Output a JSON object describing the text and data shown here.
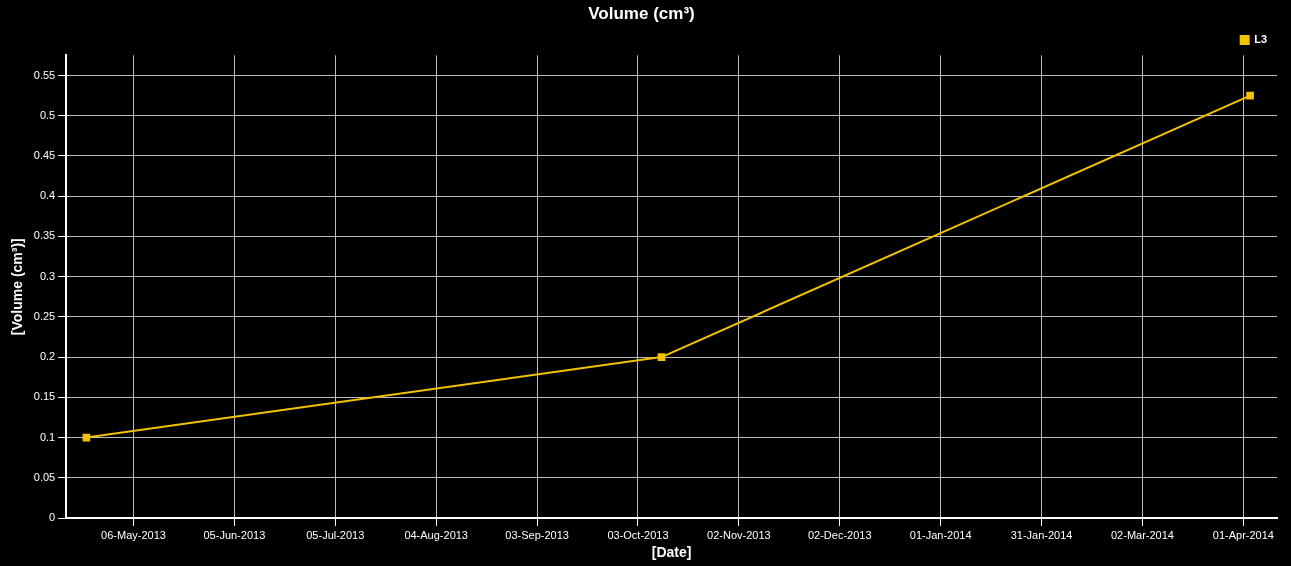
{
  "chart_data": {
    "type": "line",
    "title": "Volume (cm³)",
    "xlabel": "[Date]",
    "ylabel": "[Volume (cm³)]",
    "x": [
      "2013-04-22",
      "2013-10-10",
      "2014-04-03"
    ],
    "series": [
      {
        "name": "L3",
        "color": "#f2c200",
        "values": [
          0.1,
          0.2,
          0.525
        ]
      }
    ],
    "xlim": [
      "2013-04-16",
      "2014-04-11"
    ],
    "xticks": [
      {
        "value": "2013-05-06",
        "label": "06-May-2013"
      },
      {
        "value": "2013-06-05",
        "label": "05-Jun-2013"
      },
      {
        "value": "2013-07-05",
        "label": "05-Jul-2013"
      },
      {
        "value": "2013-08-04",
        "label": "04-Aug-2013"
      },
      {
        "value": "2013-09-03",
        "label": "03-Sep-2013"
      },
      {
        "value": "2013-10-03",
        "label": "03-Oct-2013"
      },
      {
        "value": "2013-11-02",
        "label": "02-Nov-2013"
      },
      {
        "value": "2013-12-02",
        "label": "02-Dec-2013"
      },
      {
        "value": "2014-01-01",
        "label": "01-Jan-2014"
      },
      {
        "value": "2014-01-31",
        "label": "31-Jan-2014"
      },
      {
        "value": "2014-03-02",
        "label": "02-Mar-2014"
      },
      {
        "value": "2014-04-01",
        "label": "01-Apr-2014"
      }
    ],
    "ylim": [
      0,
      0.575
    ],
    "yticks": [
      0,
      0.05,
      0.1,
      0.15,
      0.2,
      0.25,
      0.3,
      0.35,
      0.4,
      0.45,
      0.5,
      0.55
    ],
    "grid": true,
    "legend": "top right",
    "marker": "square",
    "line_style": "solid"
  }
}
